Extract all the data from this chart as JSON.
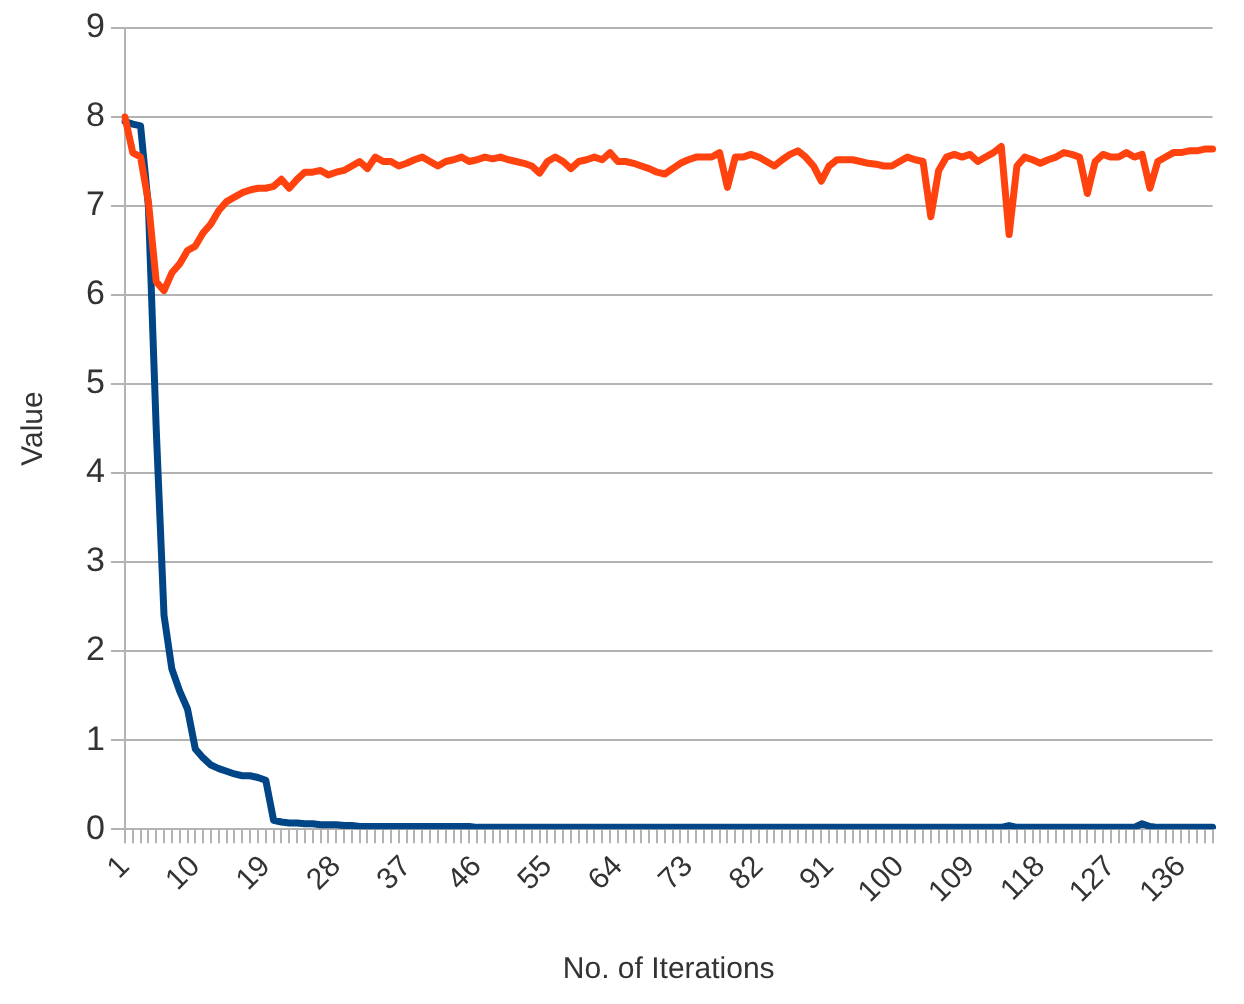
{
  "chart_data": {
    "type": "line",
    "xlabel": "No. of Iterations",
    "ylabel": "Value",
    "categories": [
      "1",
      null,
      null,
      null,
      null,
      null,
      null,
      null,
      null,
      "10",
      null,
      null,
      null,
      null,
      null,
      null,
      null,
      null,
      "19",
      null,
      null,
      null,
      null,
      null,
      null,
      null,
      null,
      "28",
      null,
      null,
      null,
      null,
      null,
      null,
      null,
      null,
      "37",
      null,
      null,
      null,
      null,
      null,
      null,
      null,
      null,
      "46",
      null,
      null,
      null,
      null,
      null,
      null,
      null,
      null,
      "55",
      null,
      null,
      null,
      null,
      null,
      null,
      null,
      null,
      "64",
      null,
      null,
      null,
      null,
      null,
      null,
      null,
      null,
      "73",
      null,
      null,
      null,
      null,
      null,
      null,
      null,
      null,
      "82",
      null,
      null,
      null,
      null,
      null,
      null,
      null,
      null,
      "91",
      null,
      null,
      null,
      null,
      null,
      null,
      null,
      null,
      "100",
      null,
      null,
      null,
      null,
      null,
      null,
      null,
      null,
      "109",
      null,
      null,
      null,
      null,
      null,
      null,
      null,
      null,
      "118",
      null,
      null,
      null,
      null,
      null,
      null,
      null,
      null,
      "127",
      null,
      null,
      null,
      null,
      null,
      null,
      null,
      null,
      "136",
      null,
      null,
      null,
      null
    ],
    "series": [
      {
        "color": "#ff420e",
        "values": [
          8.0,
          7.6,
          7.55,
          7.05,
          6.15,
          6.05,
          6.25,
          6.35,
          6.5,
          6.55,
          6.7,
          6.8,
          6.95,
          7.05,
          7.1,
          7.15,
          7.18,
          7.2,
          7.2,
          7.22,
          7.3,
          7.2,
          7.3,
          7.38,
          7.38,
          7.4,
          7.35,
          7.38,
          7.4,
          7.45,
          7.5,
          7.42,
          7.55,
          7.5,
          7.5,
          7.45,
          7.48,
          7.52,
          7.55,
          7.5,
          7.45,
          7.5,
          7.52,
          7.55,
          7.5,
          7.52,
          7.55,
          7.53,
          7.55,
          7.52,
          7.5,
          7.48,
          7.45,
          7.37,
          7.5,
          7.55,
          7.5,
          7.42,
          7.5,
          7.52,
          7.55,
          7.52,
          7.6,
          7.5,
          7.5,
          7.48,
          7.45,
          7.42,
          7.38,
          7.36,
          7.42,
          7.48,
          7.52,
          7.55,
          7.55,
          7.55,
          7.6,
          7.21,
          7.55,
          7.55,
          7.58,
          7.55,
          7.5,
          7.45,
          7.52,
          7.58,
          7.62,
          7.55,
          7.45,
          7.28,
          7.45,
          7.52,
          7.52,
          7.52,
          7.5,
          7.48,
          7.47,
          7.45,
          7.45,
          7.5,
          7.55,
          7.52,
          7.5,
          6.88,
          7.4,
          7.55,
          7.58,
          7.55,
          7.58,
          7.5,
          7.55,
          7.6,
          7.67,
          6.68,
          7.45,
          7.55,
          7.52,
          7.48,
          7.52,
          7.55,
          7.6,
          7.58,
          7.55,
          7.14,
          7.5,
          7.58,
          7.55,
          7.55,
          7.6,
          7.55,
          7.58,
          7.2,
          7.5,
          7.55,
          7.6,
          7.6,
          7.62,
          7.62,
          7.64,
          7.64
        ]
      },
      {
        "color": "#004586",
        "values": [
          7.95,
          7.92,
          7.9,
          7.0,
          4.5,
          2.4,
          1.8,
          1.55,
          1.35,
          0.9,
          0.8,
          0.72,
          0.68,
          0.65,
          0.62,
          0.6,
          0.6,
          0.58,
          0.55,
          0.1,
          0.08,
          0.07,
          0.07,
          0.06,
          0.06,
          0.05,
          0.05,
          0.05,
          0.04,
          0.04,
          0.03,
          0.03,
          0.03,
          0.03,
          0.03,
          0.03,
          0.03,
          0.03,
          0.03,
          0.03,
          0.03,
          0.03,
          0.03,
          0.03,
          0.03,
          0.02,
          0.02,
          0.02,
          0.02,
          0.02,
          0.02,
          0.02,
          0.02,
          0.02,
          0.02,
          0.02,
          0.02,
          0.02,
          0.02,
          0.02,
          0.02,
          0.02,
          0.02,
          0.02,
          0.02,
          0.02,
          0.02,
          0.02,
          0.02,
          0.02,
          0.02,
          0.02,
          0.02,
          0.02,
          0.02,
          0.02,
          0.02,
          0.02,
          0.02,
          0.02,
          0.02,
          0.02,
          0.02,
          0.02,
          0.02,
          0.02,
          0.02,
          0.02,
          0.02,
          0.02,
          0.02,
          0.02,
          0.02,
          0.02,
          0.02,
          0.02,
          0.02,
          0.02,
          0.02,
          0.02,
          0.02,
          0.02,
          0.02,
          0.02,
          0.02,
          0.02,
          0.02,
          0.02,
          0.02,
          0.02,
          0.02,
          0.02,
          0.02,
          0.04,
          0.02,
          0.02,
          0.02,
          0.02,
          0.02,
          0.02,
          0.02,
          0.02,
          0.02,
          0.02,
          0.02,
          0.02,
          0.02,
          0.02,
          0.02,
          0.02,
          0.06,
          0.03,
          0.02,
          0.02,
          0.02,
          0.02,
          0.02,
          0.02,
          0.02,
          0.02
        ]
      }
    ],
    "ylim": [
      0,
      9
    ],
    "yticks": [
      0,
      1,
      2,
      3,
      4,
      5,
      6,
      7,
      8,
      9
    ],
    "grid": "y",
    "legend": false,
    "marker": "none",
    "line_style": "solid"
  }
}
